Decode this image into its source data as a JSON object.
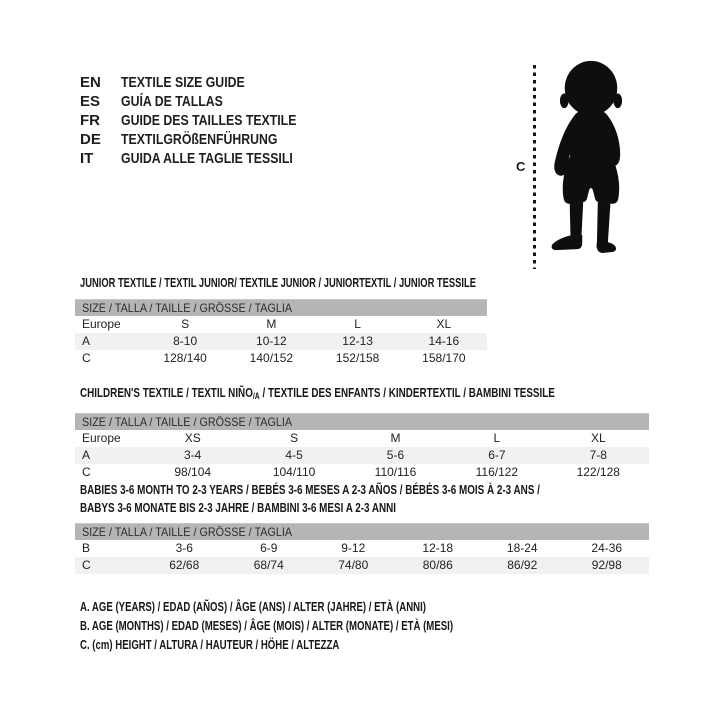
{
  "palette": {
    "band_gray": "#b5b5b5",
    "row_stripe_gray": "#f1f1f1",
    "silhouette_black": "#0e0e0e",
    "text_black": "#1e1e1e"
  },
  "languages": [
    {
      "code": "EN",
      "label": "TEXTILE SIZE GUIDE"
    },
    {
      "code": "ES",
      "label": "GUÍA DE TALLAS"
    },
    {
      "code": "FR",
      "label": "GUIDE DES TAILLES TEXTILE"
    },
    {
      "code": "DE",
      "label": "TEXTILGRÖßENFÜHRUNG"
    },
    {
      "code": "IT",
      "label": "GUIDA ALLE TAGLIE TESSILI"
    }
  ],
  "figure": {
    "icon": "toddler-silhouette",
    "measure_label": "C"
  },
  "tables": [
    {
      "title": "JUNIOR TEXTILE / TEXTIL JUNIOR/ TEXTILE JUNIOR / JUNIORTEXTIL / JUNIOR TESSILE",
      "header": "SIZE / TALLA / TAILLE / GRÖSSE / TAGLIA",
      "rows": [
        [
          "Europe",
          "S",
          "M",
          "L",
          "XL"
        ],
        [
          "A",
          "8-10",
          "10-12",
          "12-13",
          "14-16"
        ],
        [
          "C",
          "128/140",
          "140/152",
          "152/158",
          "158/170"
        ]
      ]
    },
    {
      "title_prefix": "CHILDREN'S TEXTILE / TEXTIL NIÑO",
      "title_sub": "/A",
      "title_suffix": " / TEXTILE DES ENFANTS / KINDERTEXTIL / BAMBINI TESSILE",
      "header": "SIZE / TALLA / TAILLE / GRÖSSE / TAGLIA",
      "rows": [
        [
          "Europe",
          "XS",
          "S",
          "M",
          "L",
          "XL"
        ],
        [
          "A",
          "3-4",
          "4-5",
          "5-6",
          "6-7",
          "7-8"
        ],
        [
          "C",
          "98/104",
          "104/110",
          "110/116",
          "116/122",
          "122/128"
        ]
      ]
    },
    {
      "title_line1": "BABIES 3-6 MONTH TO 2-3 YEARS / BEBÉS 3-6 MESES A 2-3 AÑOS / BÉBÉS 3-6 MOIS À 2-3 ANS /",
      "title_line2": "BABYS 3-6 MONATE BIS 2-3 JAHRE / BAMBINI 3-6 MESI A 2-3 ANNI",
      "header": "SIZE / TALLA / TAILLE / GRÖSSE / TAGLIA",
      "rows": [
        [
          "B",
          "3-6",
          "6-9",
          "9-12",
          "12-18",
          "18-24",
          "24-36"
        ],
        [
          "C",
          "62/68",
          "68/74",
          "74/80",
          "80/86",
          "86/92",
          "92/98"
        ]
      ]
    }
  ],
  "legend": [
    "A. AGE (YEARS) / EDAD (AÑOS) / ÂGE (ANS) / ALTER (JAHRE) / ETÀ (ANNI)",
    "B. AGE (MONTHS) / EDAD (MESES) / ÂGE (MOIS) / ALTER (MONATE) / ETÀ (MESI)",
    "C. (cm) HEIGHT / ALTURA / HAUTEUR / HÖHE / ALTEZZA"
  ]
}
